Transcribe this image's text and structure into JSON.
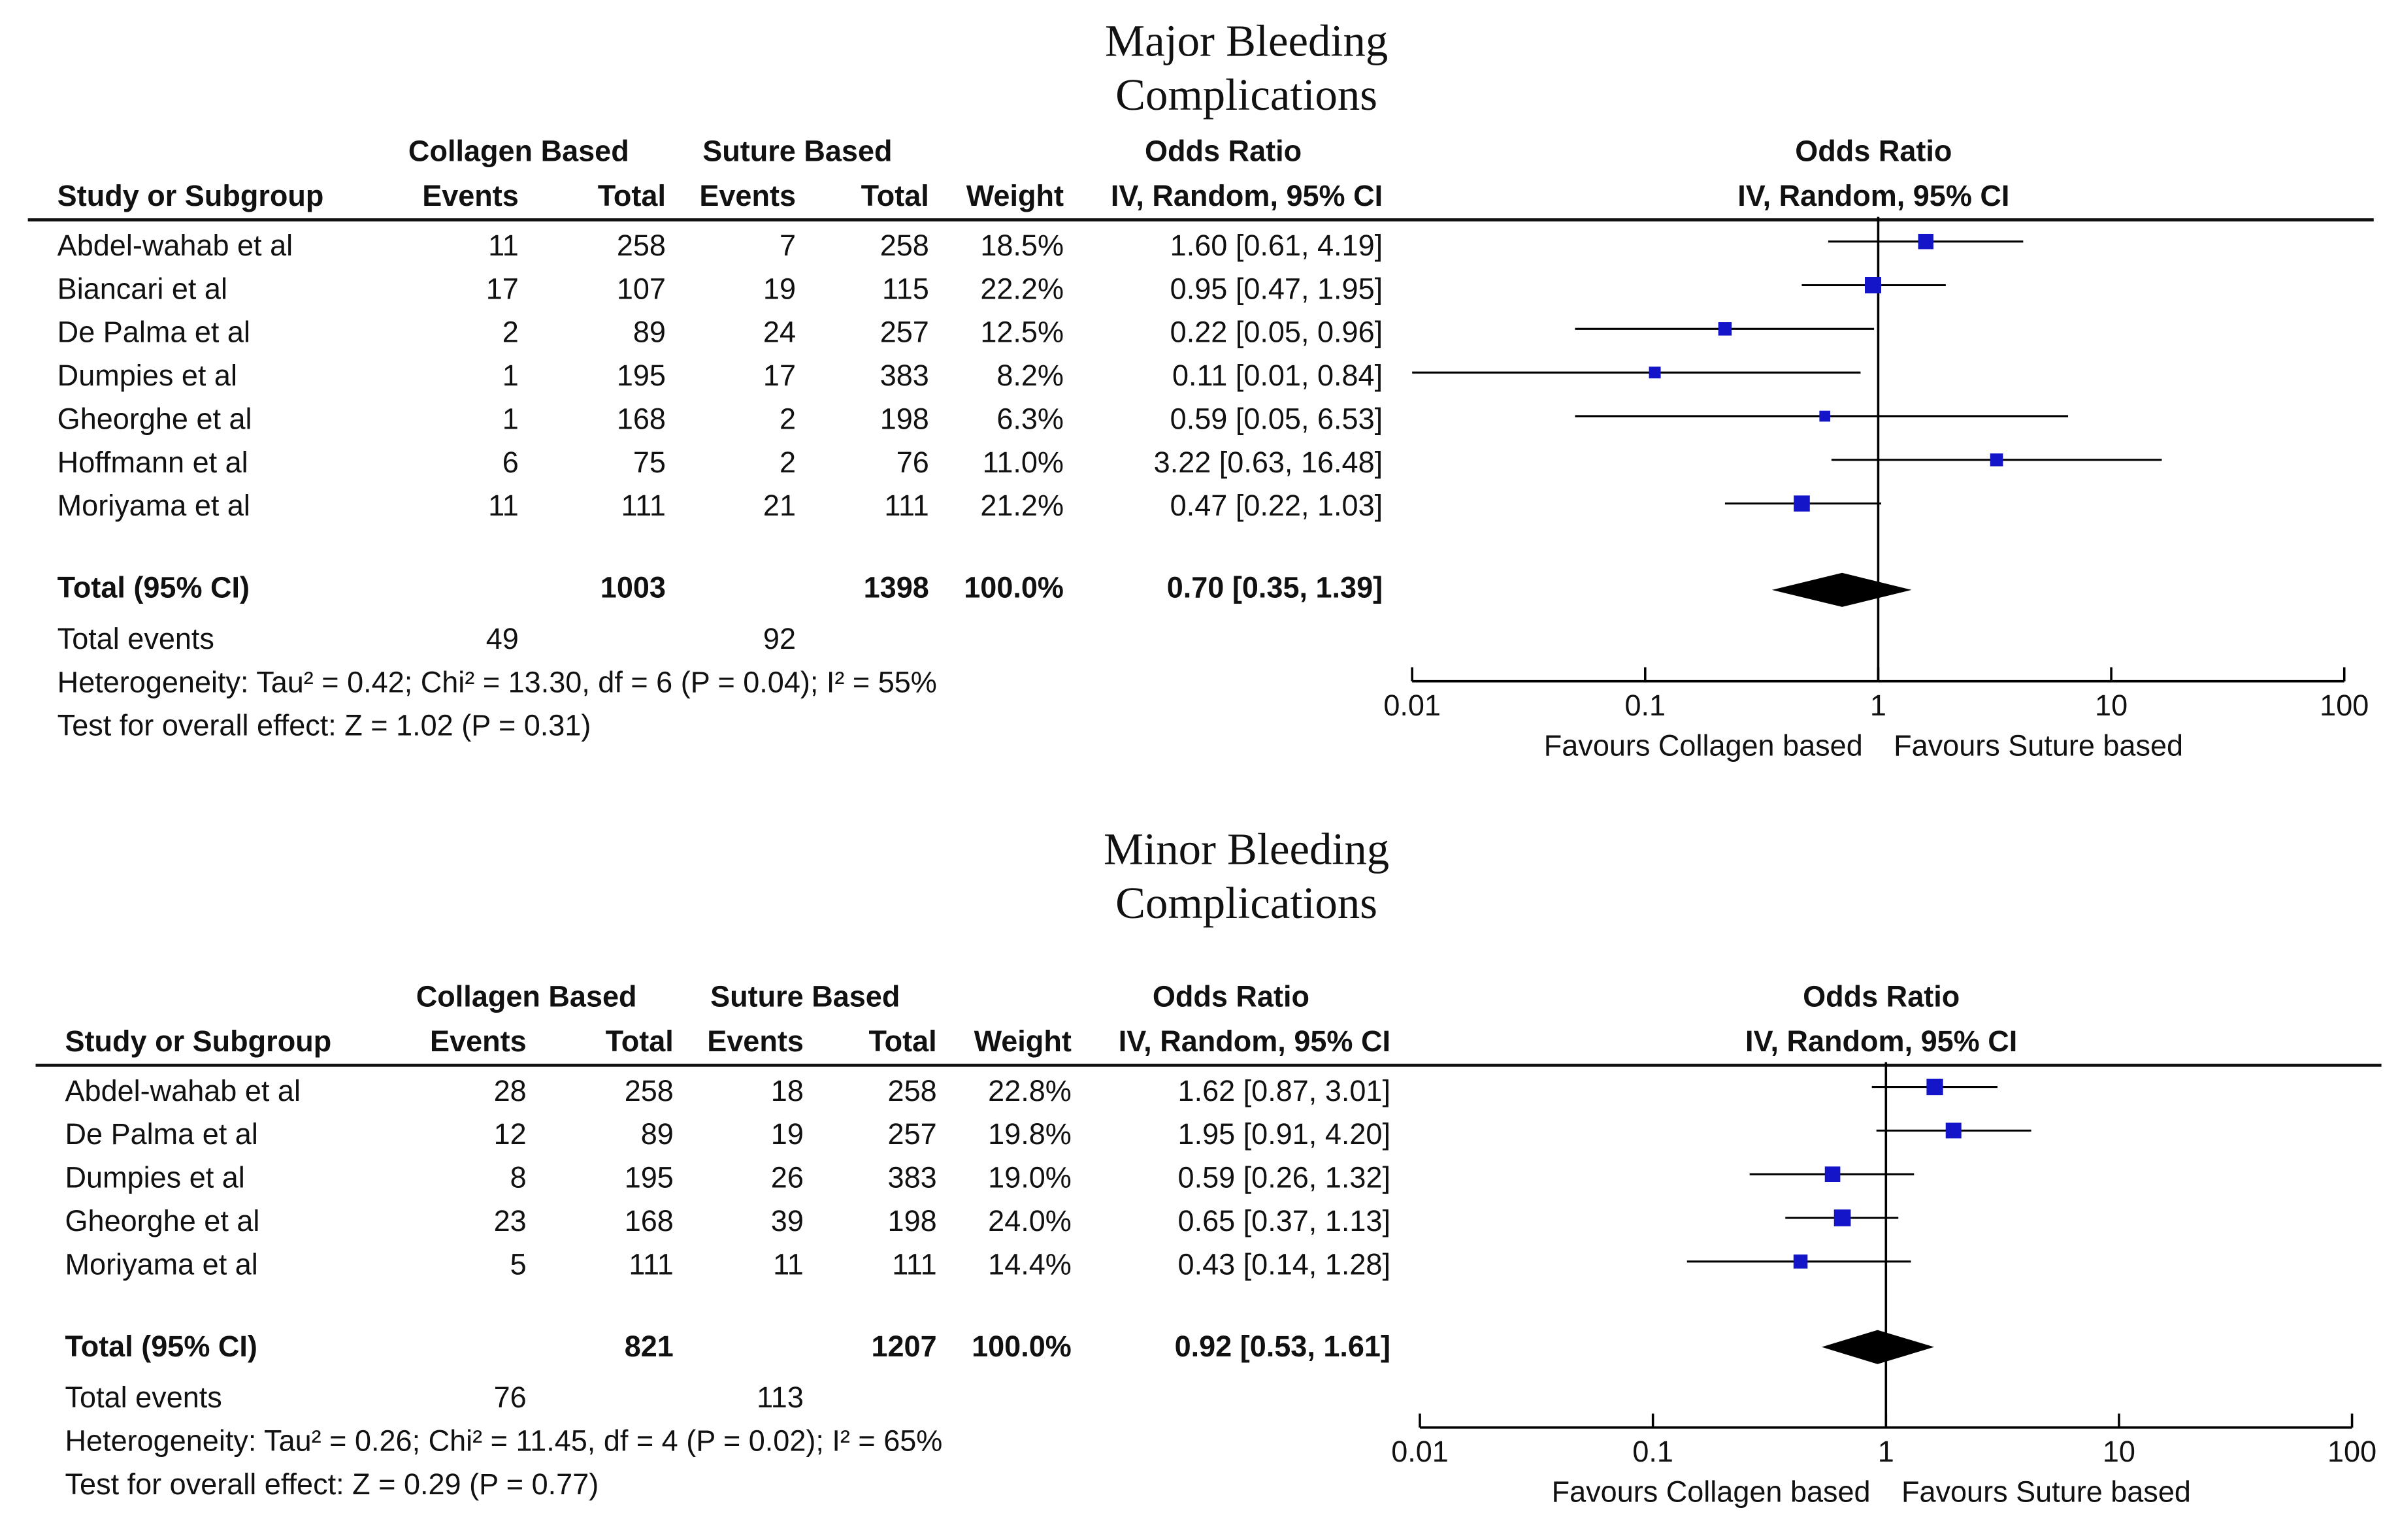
{
  "colors": {
    "marker": "#1414c8",
    "line": "#000000",
    "text": "#111111"
  },
  "headers": {
    "study": "Study or Subgroup",
    "collagen": "Collagen Based",
    "suture": "Suture Based",
    "events": "Events",
    "total": "Total",
    "weight": "Weight",
    "odds_ratio": "Odds Ratio",
    "method": "IV, Random, 95% CI"
  },
  "labels": {
    "total_ci": "Total (95% CI)",
    "total_events": "Total events"
  },
  "chart_data": [
    {
      "type": "forest",
      "title_line1": "Major Bleeding",
      "title_line2": "Complications",
      "studies": [
        {
          "name": "Abdel-wahab et al",
          "col_events": "11",
          "col_total": "258",
          "sut_events": "7",
          "sut_total": "258",
          "weight": "18.5%",
          "ci_text": "1.60 [0.61, 4.19]",
          "or": 1.6,
          "lo": 0.61,
          "hi": 4.19,
          "w": 18.5
        },
        {
          "name": "Biancari et al",
          "col_events": "17",
          "col_total": "107",
          "sut_events": "19",
          "sut_total": "115",
          "weight": "22.2%",
          "ci_text": "0.95 [0.47, 1.95]",
          "or": 0.95,
          "lo": 0.47,
          "hi": 1.95,
          "w": 22.2
        },
        {
          "name": "De Palma et al",
          "col_events": "2",
          "col_total": "89",
          "sut_events": "24",
          "sut_total": "257",
          "weight": "12.5%",
          "ci_text": "0.22 [0.05, 0.96]",
          "or": 0.22,
          "lo": 0.05,
          "hi": 0.96,
          "w": 12.5
        },
        {
          "name": "Dumpies et al",
          "col_events": "1",
          "col_total": "195",
          "sut_events": "17",
          "sut_total": "383",
          "weight": "8.2%",
          "ci_text": "0.11 [0.01, 0.84]",
          "or": 0.11,
          "lo": 0.01,
          "hi": 0.84,
          "w": 8.2
        },
        {
          "name": "Gheorghe et al",
          "col_events": "1",
          "col_total": "168",
          "sut_events": "2",
          "sut_total": "198",
          "weight": "6.3%",
          "ci_text": "0.59 [0.05, 6.53]",
          "or": 0.59,
          "lo": 0.05,
          "hi": 6.53,
          "w": 6.3
        },
        {
          "name": "Hoffmann et al",
          "col_events": "6",
          "col_total": "75",
          "sut_events": "2",
          "sut_total": "76",
          "weight": "11.0%",
          "ci_text": "3.22 [0.63, 16.48]",
          "or": 3.22,
          "lo": 0.63,
          "hi": 16.48,
          "w": 11.0
        },
        {
          "name": "Moriyama et al",
          "col_events": "11",
          "col_total": "111",
          "sut_events": "21",
          "sut_total": "111",
          "weight": "21.2%",
          "ci_text": "0.47 [0.22, 1.03]",
          "or": 0.47,
          "lo": 0.22,
          "hi": 1.03,
          "w": 21.2
        }
      ],
      "total": {
        "col_total": "1003",
        "sut_total": "1398",
        "weight": "100.0%",
        "ci_text": "0.70 [0.35, 1.39]",
        "or": 0.7,
        "lo": 0.35,
        "hi": 1.39
      },
      "total_events": {
        "col": "49",
        "sut": "92"
      },
      "heterogeneity": "Heterogeneity: Tau² = 0.42; Chi² = 13.30, df = 6 (P = 0.04); I² = 55%",
      "overall_effect": "Test for overall effect: Z = 1.02 (P = 0.31)",
      "x_scale": "log",
      "xlim": [
        0.01,
        100
      ],
      "x_ticks": [
        "0.01",
        "0.1",
        "1",
        "10",
        "100"
      ],
      "favours_left": "Favours Collagen based",
      "favours_right": "Favours Suture based"
    },
    {
      "type": "forest",
      "title_line1": "Minor Bleeding",
      "title_line2": "Complications",
      "studies": [
        {
          "name": "Abdel-wahab et al",
          "col_events": "28",
          "col_total": "258",
          "sut_events": "18",
          "sut_total": "258",
          "weight": "22.8%",
          "ci_text": "1.62 [0.87, 3.01]",
          "or": 1.62,
          "lo": 0.87,
          "hi": 3.01,
          "w": 22.8
        },
        {
          "name": "De Palma et al",
          "col_events": "12",
          "col_total": "89",
          "sut_events": "19",
          "sut_total": "257",
          "weight": "19.8%",
          "ci_text": "1.95 [0.91, 4.20]",
          "or": 1.95,
          "lo": 0.91,
          "hi": 4.2,
          "w": 19.8
        },
        {
          "name": "Dumpies et al",
          "col_events": "8",
          "col_total": "195",
          "sut_events": "26",
          "sut_total": "383",
          "weight": "19.0%",
          "ci_text": "0.59 [0.26, 1.32]",
          "or": 0.59,
          "lo": 0.26,
          "hi": 1.32,
          "w": 19.0
        },
        {
          "name": "Gheorghe et al",
          "col_events": "23",
          "col_total": "168",
          "sut_events": "39",
          "sut_total": "198",
          "weight": "24.0%",
          "ci_text": "0.65 [0.37, 1.13]",
          "or": 0.65,
          "lo": 0.37,
          "hi": 1.13,
          "w": 24.0
        },
        {
          "name": "Moriyama et al",
          "col_events": "5",
          "col_total": "111",
          "sut_events": "11",
          "sut_total": "111",
          "weight": "14.4%",
          "ci_text": "0.43 [0.14, 1.28]",
          "or": 0.43,
          "lo": 0.14,
          "hi": 1.28,
          "w": 14.4
        }
      ],
      "total": {
        "col_total": "821",
        "sut_total": "1207",
        "weight": "100.0%",
        "ci_text": "0.92 [0.53, 1.61]",
        "or": 0.92,
        "lo": 0.53,
        "hi": 1.61
      },
      "total_events": {
        "col": "76",
        "sut": "113"
      },
      "heterogeneity": "Heterogeneity: Tau² = 0.26; Chi² = 11.45, df = 4 (P = 0.02); I² = 65%",
      "overall_effect": "Test for overall effect: Z = 0.29 (P = 0.77)",
      "x_scale": "log",
      "xlim": [
        0.01,
        100
      ],
      "x_ticks": [
        "0.01",
        "0.1",
        "1",
        "10",
        "100"
      ],
      "favours_left": "Favours Collagen based",
      "favours_right": "Favours Suture based"
    }
  ]
}
